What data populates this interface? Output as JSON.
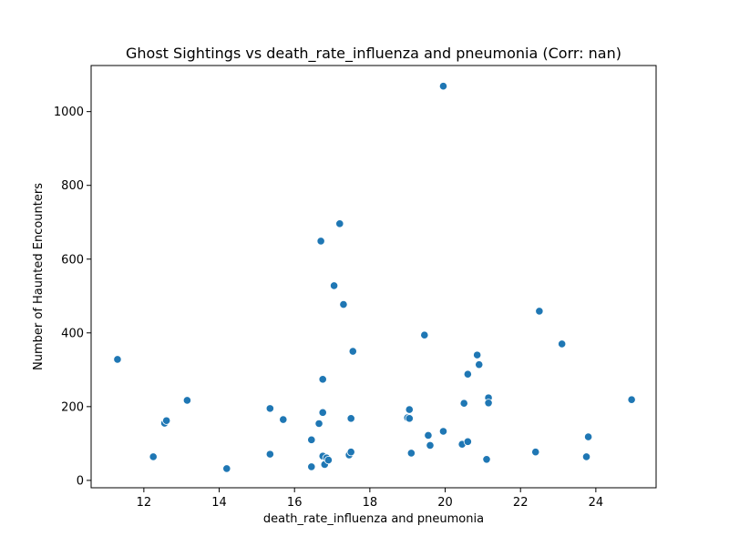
{
  "chart_data": {
    "type": "scatter",
    "title": "Ghost Sightings vs death_rate_influenza and pneumonia (Corr: nan)",
    "xlabel": "death_rate_influenza and pneumonia",
    "ylabel": "Number of Haunted Encounters",
    "xlim": [
      10.6,
      25.6
    ],
    "ylim": [
      -20,
      1125
    ],
    "xticks": [
      12,
      14,
      16,
      18,
      20,
      22,
      24
    ],
    "yticks": [
      0,
      200,
      400,
      600,
      800,
      1000
    ],
    "grid": false,
    "marker_color": "#1f77b4",
    "x": [
      11.3,
      12.25,
      12.55,
      12.6,
      13.15,
      14.2,
      15.35,
      15.35,
      15.7,
      16.45,
      16.45,
      16.65,
      16.7,
      16.75,
      16.75,
      16.75,
      16.8,
      16.85,
      16.9,
      17.05,
      17.2,
      17.3,
      17.45,
      17.5,
      17.5,
      17.55,
      19.0,
      19.05,
      19.05,
      19.1,
      19.45,
      19.55,
      19.6,
      19.95,
      19.95,
      20.45,
      20.5,
      20.6,
      20.6,
      20.85,
      20.9,
      21.1,
      21.15,
      21.15,
      22.4,
      22.5,
      23.1,
      23.75,
      23.8,
      24.95
    ],
    "y": [
      328,
      64,
      155,
      162,
      217,
      32,
      195,
      71,
      165,
      110,
      37,
      154,
      649,
      66,
      274,
      184,
      43,
      61,
      55,
      528,
      696,
      477,
      69,
      77,
      168,
      350,
      170,
      168,
      192,
      74,
      394,
      122,
      95,
      1069,
      133,
      98,
      209,
      105,
      288,
      340,
      314,
      57,
      224,
      210,
      77,
      459,
      370,
      64,
      118,
      219
    ]
  }
}
